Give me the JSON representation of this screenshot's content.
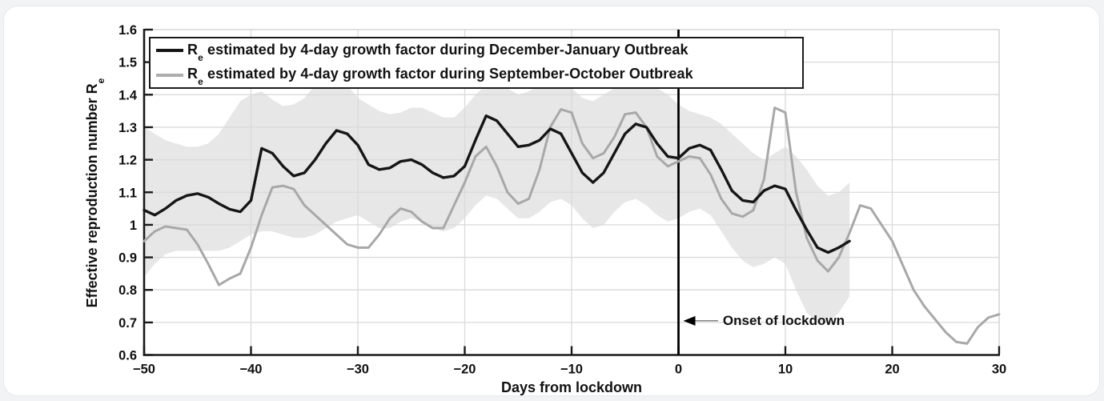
{
  "page": {
    "background": "#f2f3f5",
    "card_background": "#ffffff"
  },
  "chart_data": {
    "type": "line",
    "title": "",
    "xlabel": "Days from lockdown",
    "ylabel": "Effective reproduction number Re",
    "xlim": [
      -50,
      30
    ],
    "ylim": [
      0.6,
      1.6
    ],
    "x_ticks": [
      -50,
      -40,
      -30,
      -20,
      -10,
      0,
      10,
      20,
      30
    ],
    "y_ticks": [
      0.6,
      0.7,
      0.8,
      0.9,
      1,
      1.1,
      1.2,
      1.3,
      1.4,
      1.5,
      1.6
    ],
    "grid": true,
    "legend_position": "top-left-inside",
    "colors": {
      "december_january_line": "#161616",
      "september_october_line": "#a8a8a8",
      "confidence_band": "#e7e7e7",
      "gridline": "#dadada",
      "axis": "#1a1a1a"
    },
    "series": [
      {
        "name": "Re estimated by 4-day growth factor during December-January Outbreak",
        "color": "#161616",
        "stroke_width": 3.4,
        "x_start": -50,
        "x_step": 1,
        "values": [
          1.045,
          1.03,
          1.05,
          1.075,
          1.09,
          1.096,
          1.085,
          1.065,
          1.048,
          1.04,
          1.075,
          1.235,
          1.22,
          1.18,
          1.15,
          1.16,
          1.2,
          1.25,
          1.29,
          1.28,
          1.245,
          1.185,
          1.17,
          1.175,
          1.195,
          1.2,
          1.185,
          1.16,
          1.145,
          1.15,
          1.18,
          1.26,
          1.335,
          1.32,
          1.28,
          1.24,
          1.245,
          1.26,
          1.295,
          1.28,
          1.22,
          1.16,
          1.13,
          1.16,
          1.22,
          1.28,
          1.31,
          1.3,
          1.25,
          1.21,
          1.205,
          1.235,
          1.245,
          1.23,
          1.17,
          1.105,
          1.075,
          1.07,
          1.105,
          1.12,
          1.11,
          1.045,
          0.985,
          0.93,
          0.915,
          0.93,
          0.95
        ]
      },
      {
        "name": "Re estimated by 4-day growth factor during September-October Outbreak",
        "color": "#a8a8a8",
        "stroke_width": 3.0,
        "x_start": -50,
        "x_step": 1,
        "values": [
          0.95,
          0.98,
          0.995,
          0.99,
          0.985,
          0.94,
          0.88,
          0.815,
          0.835,
          0.85,
          0.93,
          1.03,
          1.115,
          1.12,
          1.11,
          1.06,
          1.03,
          1.0,
          0.97,
          0.94,
          0.93,
          0.93,
          0.97,
          1.02,
          1.05,
          1.04,
          1.01,
          0.99,
          0.99,
          1.06,
          1.13,
          1.21,
          1.24,
          1.18,
          1.1,
          1.065,
          1.08,
          1.17,
          1.3,
          1.355,
          1.345,
          1.25,
          1.205,
          1.22,
          1.27,
          1.34,
          1.345,
          1.3,
          1.21,
          1.18,
          1.195,
          1.21,
          1.205,
          1.155,
          1.08,
          1.035,
          1.025,
          1.045,
          1.14,
          1.36,
          1.345,
          1.1,
          0.96,
          0.89,
          0.857,
          0.9,
          0.975,
          1.06,
          1.05,
          1.0,
          0.95,
          0.875,
          0.8,
          0.75,
          0.71,
          0.67,
          0.64,
          0.635,
          0.685,
          0.715,
          0.725
        ]
      }
    ],
    "band": {
      "name": "confidence-band-december-january",
      "color": "#e7e7e7",
      "x_start": -50,
      "x_step": 1,
      "upper": [
        1.3,
        1.28,
        1.26,
        1.25,
        1.24,
        1.24,
        1.25,
        1.28,
        1.33,
        1.38,
        1.4,
        1.41,
        1.385,
        1.365,
        1.37,
        1.39,
        1.43,
        1.44,
        1.44,
        1.43,
        1.39,
        1.37,
        1.35,
        1.34,
        1.345,
        1.36,
        1.36,
        1.345,
        1.33,
        1.33,
        1.36,
        1.4,
        1.43,
        1.44,
        1.42,
        1.4,
        1.41,
        1.43,
        1.44,
        1.44,
        1.42,
        1.39,
        1.38,
        1.4,
        1.42,
        1.44,
        1.44,
        1.43,
        1.42,
        1.4,
        1.37,
        1.35,
        1.34,
        1.33,
        1.31,
        1.28,
        1.25,
        1.22,
        1.2,
        1.22,
        1.24,
        1.21,
        1.17,
        1.12,
        1.09,
        1.1,
        1.13
      ],
      "lower": [
        0.84,
        0.88,
        0.91,
        0.92,
        0.92,
        0.92,
        0.92,
        0.92,
        0.93,
        0.95,
        0.97,
        0.98,
        0.98,
        0.97,
        0.96,
        0.96,
        0.97,
        0.99,
        1.01,
        1.02,
        1.03,
        1.01,
        0.99,
        0.99,
        1.01,
        1.02,
        1.01,
        0.99,
        0.98,
        0.99,
        1.02,
        1.06,
        1.09,
        1.08,
        1.05,
        1.02,
        1.02,
        1.04,
        1.07,
        1.08,
        1.06,
        1.02,
        0.99,
        1.0,
        1.04,
        1.07,
        1.08,
        1.06,
        1.03,
        1.01,
        1.02,
        1.04,
        1.05,
        1.03,
        0.98,
        0.93,
        0.89,
        0.87,
        0.88,
        0.9,
        0.88,
        0.8,
        0.73,
        0.7,
        0.7,
        0.73,
        0.78
      ]
    },
    "vline": {
      "x": 0,
      "color": "#000000",
      "stroke_width": 2.8
    },
    "annotation": {
      "label": "Onset of lockdown",
      "arrow_tip_day": 0.45,
      "arrow_tail_day": 3.7,
      "value": 0.705
    }
  },
  "legend": {
    "items": [
      {
        "symbol": "R",
        "sub": "e",
        "label": " estimated by 4-day growth factor during December-January Outbreak",
        "color": "#161616"
      },
      {
        "symbol": "R",
        "sub": "e",
        "label": " estimated by 4-day growth factor during September-October Outbreak",
        "color": "#aeaeae"
      }
    ]
  },
  "axes": {
    "xlabel": "Days from lockdown",
    "ylabel_prefix": "Effective reproduction number R",
    "ylabel_sub": "e",
    "x_tick_labels": [
      "−50",
      "−40",
      "−30",
      "−20",
      "−10",
      "0",
      "10",
      "20",
      "30"
    ],
    "y_tick_labels": [
      "0.6",
      "0.7",
      "0.8",
      "0.9",
      "1",
      "1.1",
      "1.2",
      "1.3",
      "1.4",
      "1.5",
      "1.6"
    ]
  },
  "annotation": {
    "label": "Onset of lockdown"
  }
}
